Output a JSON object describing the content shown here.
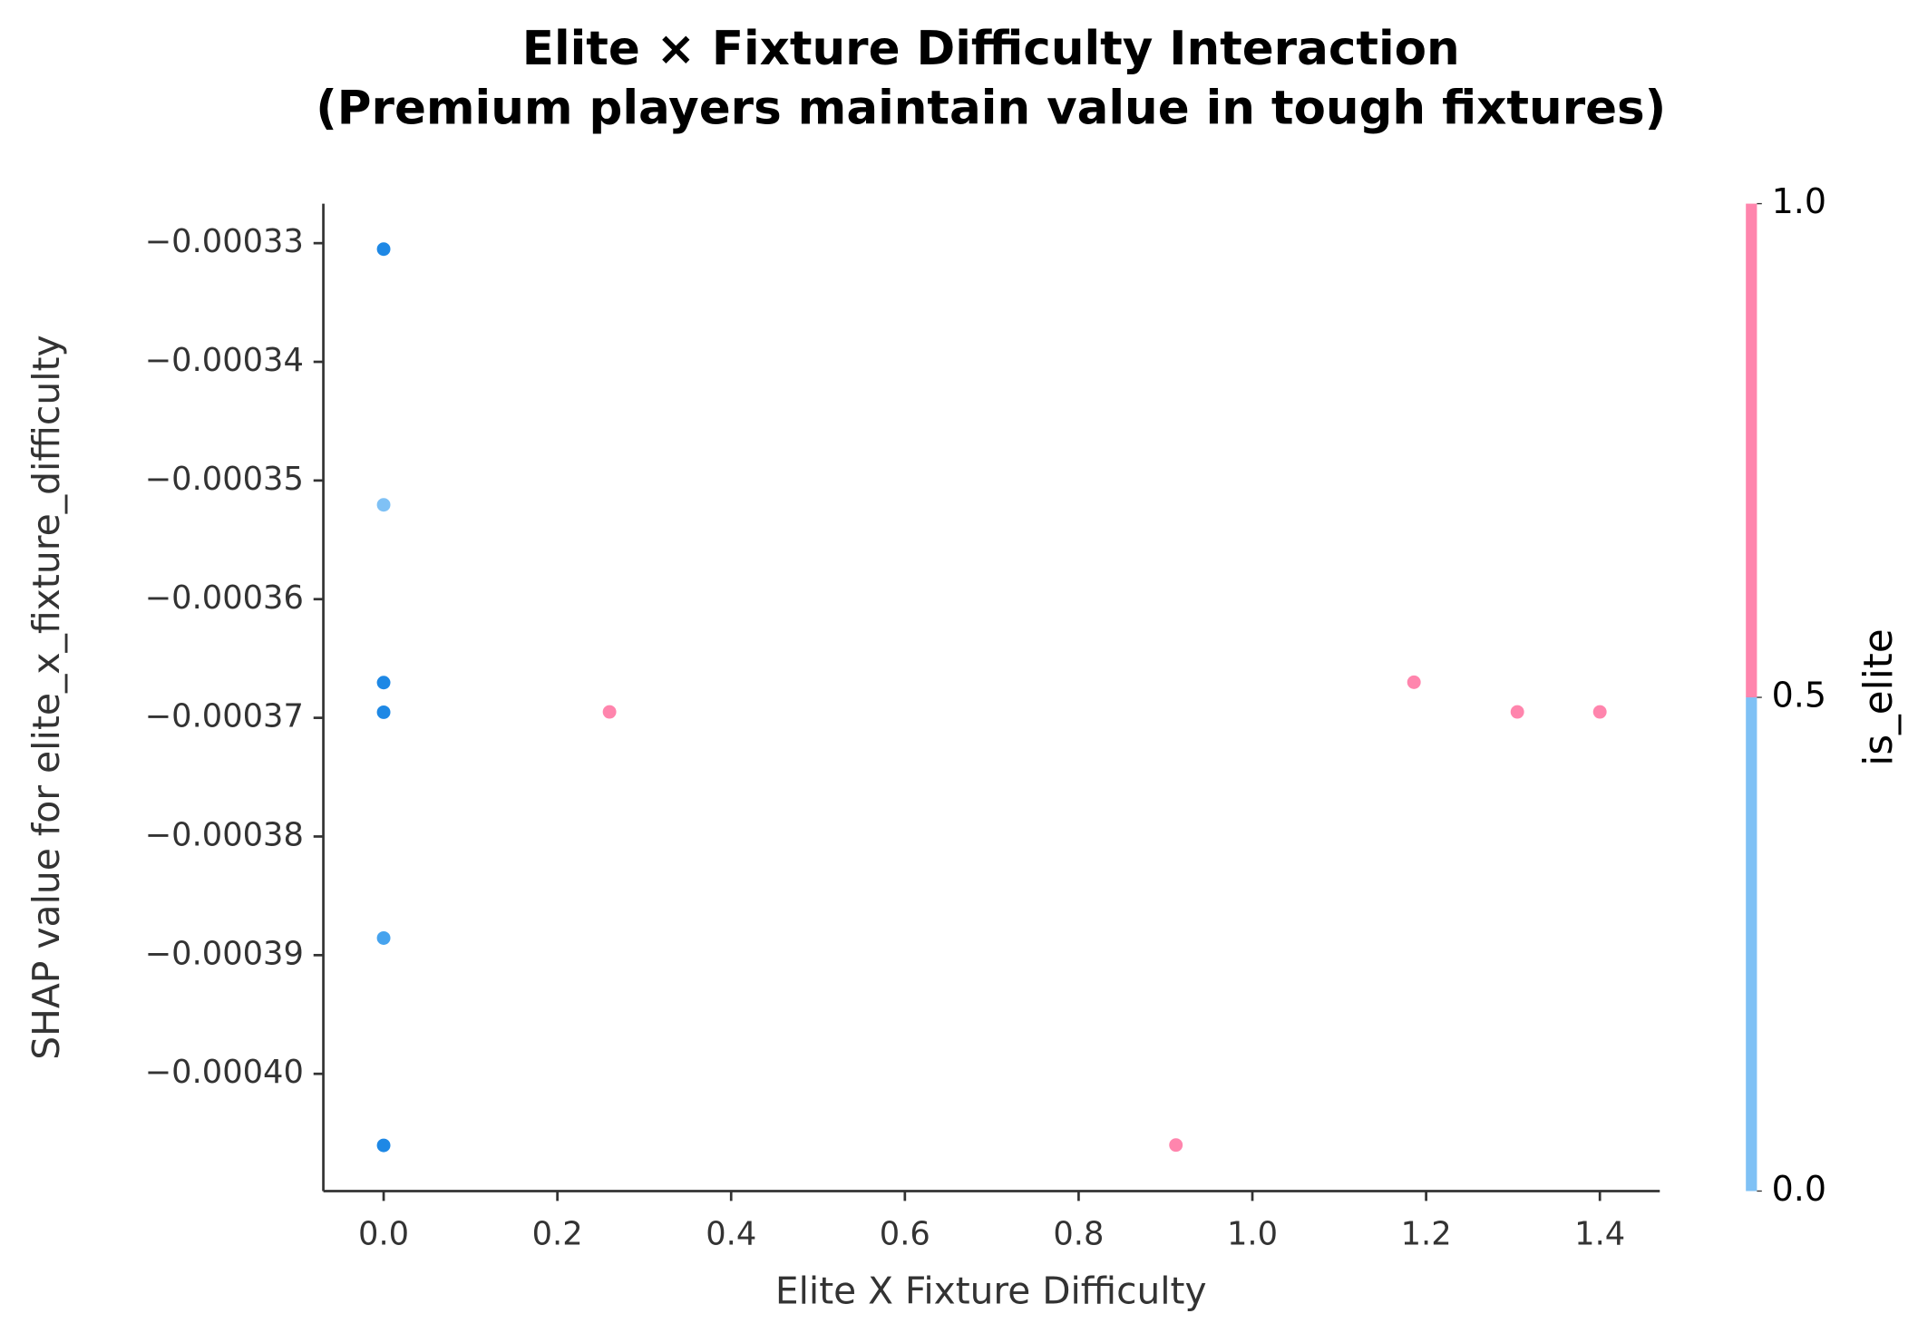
{
  "chart_data": {
    "type": "scatter",
    "title": "Elite × Fixture Difficulty Interaction",
    "subtitle": "(Premium players maintain value in tough fixtures)",
    "x_label": "Elite X Fixture Difficulty",
    "y_label": "SHAP value for elite_x_fixture_difficulty",
    "x": [
      0,
      0,
      0,
      0,
      0,
      0,
      0.26,
      1.186,
      1.305,
      1.4,
      0.912
    ],
    "y": [
      -0.0003305,
      -0.00035205,
      -0.00036703,
      -0.00036953,
      -0.00038856,
      -0.00040603,
      -0.0003695,
      -0.000367,
      -0.0003695,
      -0.0003695,
      -0.000406
    ],
    "colors": [
      "#1e88e5",
      "#7fc1f5",
      "#1e88e5",
      "#1e88e5",
      "#46a3ee",
      "#1e88e5",
      "#ff85ad",
      "#ff85ad",
      "#ff85ad",
      "#ff85ad",
      "#ff85ad"
    ],
    "xlim": [
      -0.0694,
      1.469
    ],
    "ylim": [
      -0.00040988,
      -0.00032667
    ],
    "xticks": [
      {
        "value": 0,
        "label": "0.0"
      },
      0.2,
      0.4,
      0.6,
      0.8,
      {
        "value": 1,
        "label": "1.0"
      },
      1.2,
      1.4
    ],
    "yticks": [
      {
        "value": -0.00033,
        "label": "−0.00033"
      },
      {
        "value": -0.00034,
        "label": "−0.00034"
      },
      {
        "value": -0.00035,
        "label": "−0.00035"
      },
      {
        "value": -0.00036,
        "label": "−0.00036"
      },
      {
        "value": -0.00037,
        "label": "−0.00037"
      },
      {
        "value": -0.00038,
        "label": "−0.00038"
      },
      {
        "value": -0.00039,
        "label": "−0.00039"
      },
      {
        "value": -0.0004,
        "label": "−0.00040"
      }
    ],
    "colorbar": {
      "label": "is_elite",
      "lim": [
        0,
        1
      ],
      "split": 0.5,
      "colors": [
        "#7fc1f5",
        "#ff85ad"
      ],
      "ticks": [
        {
          "value": 0,
          "label": "0.0"
        },
        0.5,
        {
          "value": 1,
          "label": "1.0"
        }
      ]
    }
  }
}
